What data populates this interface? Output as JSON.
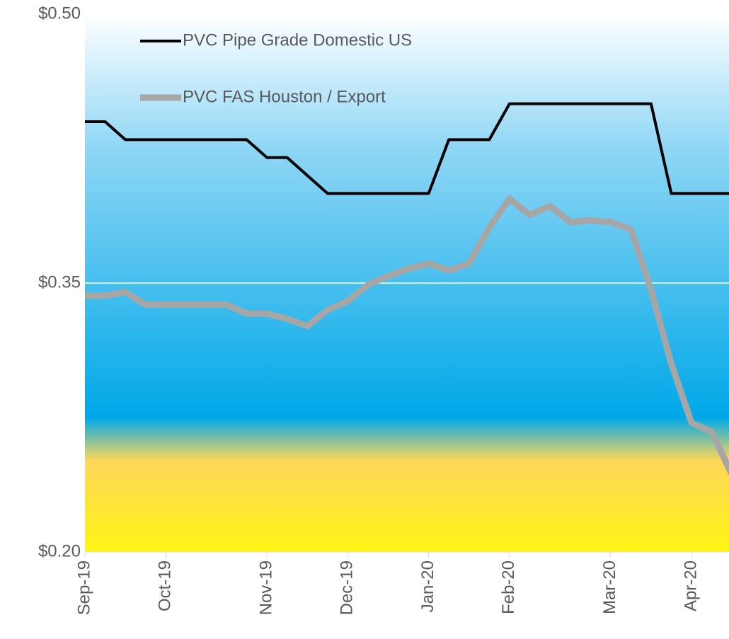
{
  "chart_data": {
    "type": "line",
    "categories": [
      "Sep-19",
      null,
      null,
      null,
      "Oct-19",
      null,
      null,
      null,
      null,
      "Nov-19",
      null,
      null,
      null,
      "Dec-19",
      null,
      null,
      null,
      "Jan-20",
      null,
      null,
      null,
      "Feb-20",
      null,
      null,
      null,
      null,
      "Mar-20",
      null,
      null,
      null,
      "Apr-20",
      null,
      null
    ],
    "series": [
      {
        "name": "PVC Pipe Grade Domestic US",
        "color": "#000000",
        "values": [
          0.44,
          0.44,
          0.43,
          0.43,
          0.43,
          0.43,
          0.43,
          0.43,
          0.43,
          0.42,
          0.42,
          0.41,
          0.4,
          0.4,
          0.4,
          0.4,
          0.4,
          0.4,
          0.43,
          0.43,
          0.43,
          0.45,
          0.45,
          0.45,
          0.45,
          0.45,
          0.45,
          0.45,
          0.45,
          0.4,
          0.4,
          0.4,
          0.4
        ]
      },
      {
        "name": "PVC FAS Houston / Export",
        "color": "#a6a6a6",
        "values": [
          0.343,
          0.343,
          0.345,
          0.338,
          0.338,
          0.338,
          0.338,
          0.338,
          0.333,
          0.333,
          0.33,
          0.326,
          0.335,
          0.34,
          0.349,
          0.354,
          0.358,
          0.361,
          0.357,
          0.361,
          0.381,
          0.397,
          0.388,
          0.393,
          0.384,
          0.385,
          0.384,
          0.38,
          0.346,
          0.305,
          0.272,
          0.267,
          0.243
        ]
      }
    ],
    "ylim": [
      0.2,
      0.5
    ],
    "yticks": [
      {
        "value": 0.2,
        "label": "$0.20"
      },
      {
        "value": 0.35,
        "label": "$0.35"
      },
      {
        "value": 0.5,
        "label": "$0.50"
      }
    ],
    "grid": true
  }
}
